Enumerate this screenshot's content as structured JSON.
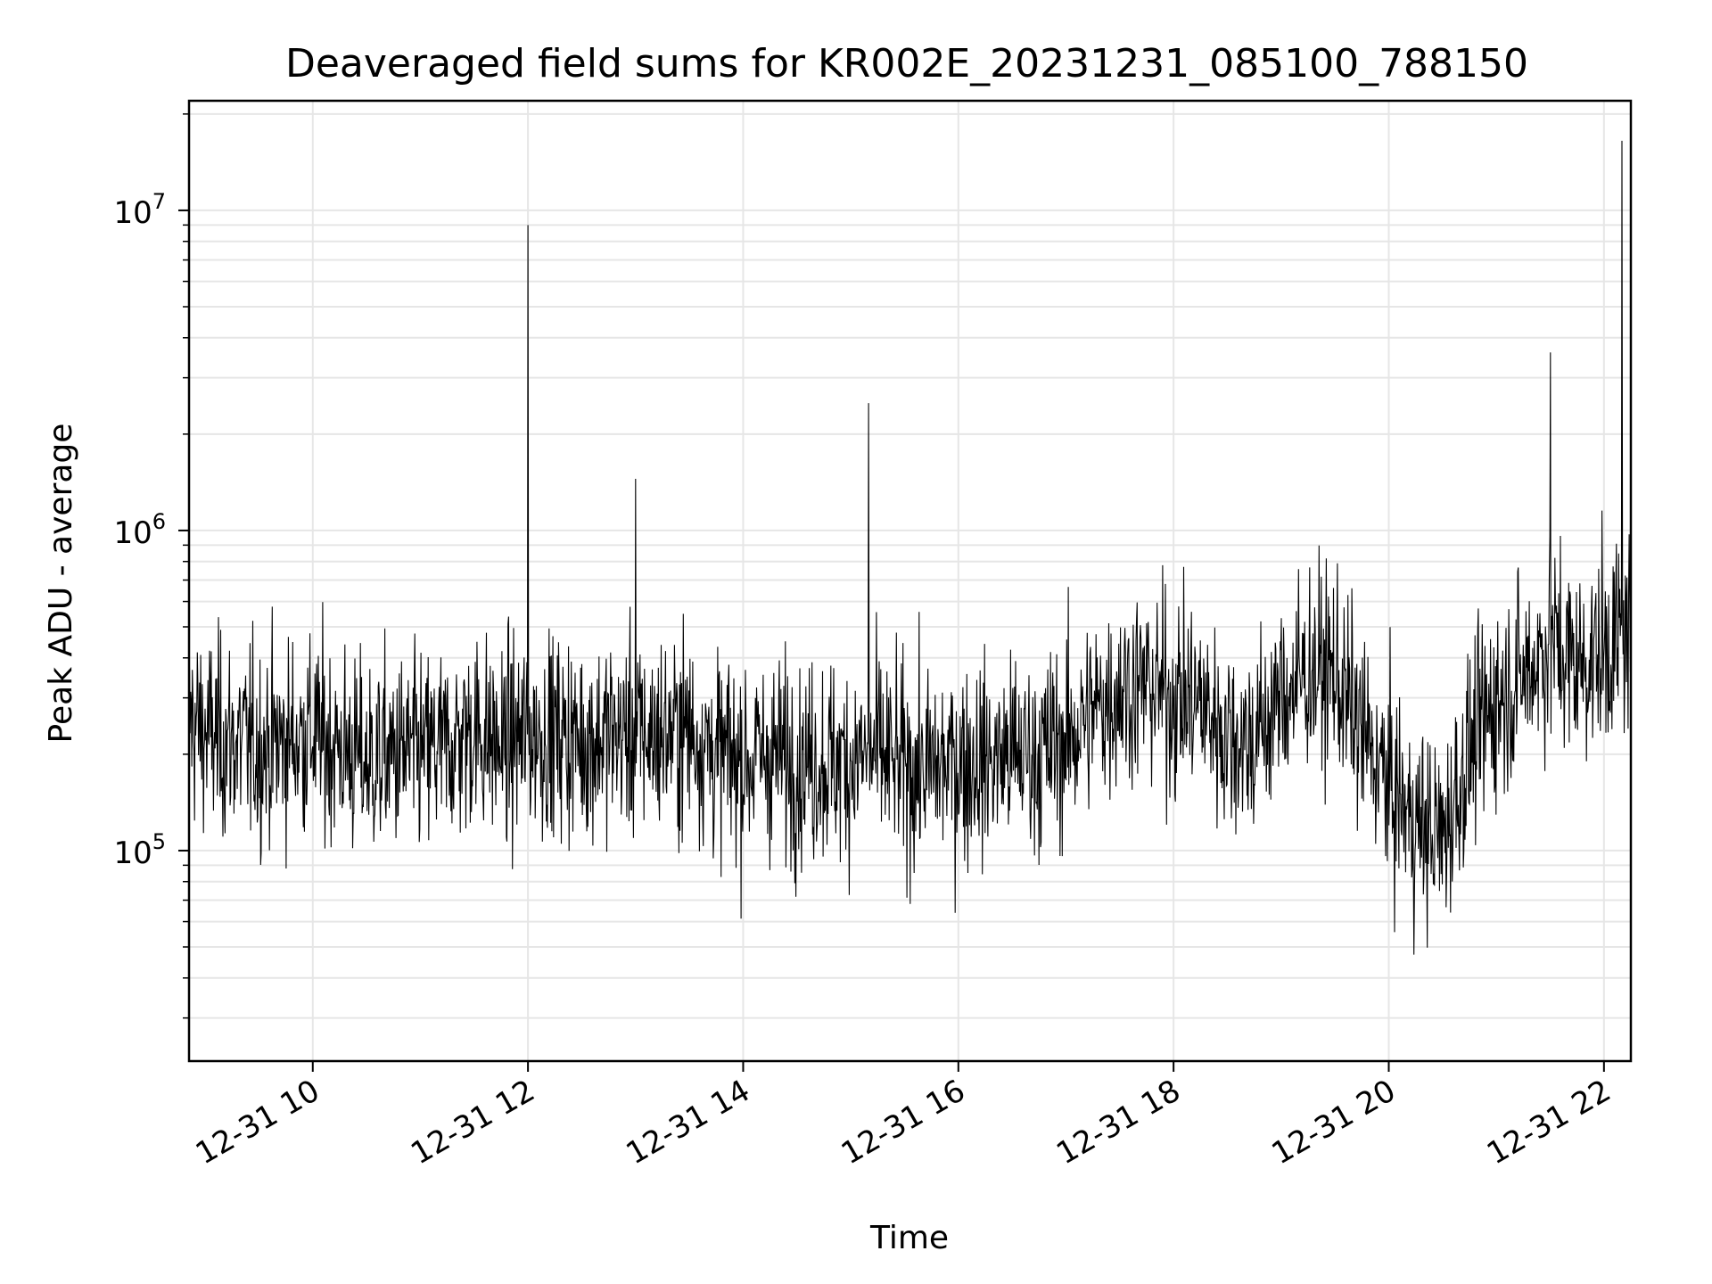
{
  "chart_data": {
    "type": "line",
    "title": "Deaveraged field sums for KR002E_20231231_085100_788150",
    "xlabel": "Time",
    "ylabel": "Peak ADU - average",
    "x_axis": {
      "type": "time",
      "range": [
        "12-31 08:51",
        "12-31 22:15"
      ],
      "tick_labels": [
        "12-31 10",
        "12-31 12",
        "12-31 14",
        "12-31 16",
        "12-31 18",
        "12-31 20",
        "12-31 22"
      ],
      "tick_hours": [
        10,
        12,
        14,
        16,
        18,
        20,
        22
      ]
    },
    "y_axis": {
      "scale": "log",
      "range": [
        22000,
        22000000
      ],
      "major_ticks": [
        {
          "value": 100000,
          "base": "10",
          "exp": "5"
        },
        {
          "value": 1000000,
          "base": "10",
          "exp": "6"
        },
        {
          "value": 10000000,
          "base": "10",
          "exp": "7"
        }
      ]
    },
    "grid": true,
    "line_color": "#000000",
    "series": [
      {
        "x_hours": [
          8.85,
          9.0,
          9.25,
          9.5,
          9.75,
          10.0,
          10.25,
          10.5,
          10.75,
          11.0,
          11.25,
          11.5,
          11.75,
          12.0,
          12.25,
          12.5,
          12.75,
          13.0,
          13.25,
          13.5,
          13.75,
          14.0,
          14.25,
          14.5,
          14.75,
          15.0,
          15.25,
          15.5,
          15.75,
          16.0,
          16.25,
          16.5,
          16.75,
          17.0,
          17.25,
          17.5,
          17.75,
          18.0,
          18.25,
          18.5,
          18.75,
          19.0,
          19.25,
          19.5,
          19.75,
          20.0,
          20.25,
          20.5,
          20.75,
          21.0,
          21.25,
          21.5,
          21.75,
          22.0,
          22.25
        ],
        "median": [
          260000,
          230000,
          220000,
          210000,
          220000,
          230000,
          210000,
          190000,
          200000,
          200000,
          210000,
          240000,
          210000,
          230000,
          230000,
          220000,
          230000,
          230000,
          230000,
          240000,
          200000,
          190000,
          200000,
          190000,
          190000,
          190000,
          200000,
          180000,
          180000,
          190000,
          190000,
          200000,
          200000,
          220000,
          270000,
          320000,
          330000,
          300000,
          290000,
          230000,
          220000,
          300000,
          360000,
          360000,
          230000,
          160000,
          120000,
          110000,
          200000,
          300000,
          350000,
          450000,
          380000,
          420000,
          500000
        ],
        "spikes": [
          {
            "time": "12-31 12:00",
            "value": 9000000
          },
          {
            "time": "12-31 15:10",
            "value": 2500000
          },
          {
            "time": "12-31 13:00",
            "value": 1450000
          },
          {
            "time": "12-31 21:30",
            "value": 3600000
          },
          {
            "time": "12-31 22:10",
            "value": 16500000
          }
        ]
      }
    ]
  }
}
